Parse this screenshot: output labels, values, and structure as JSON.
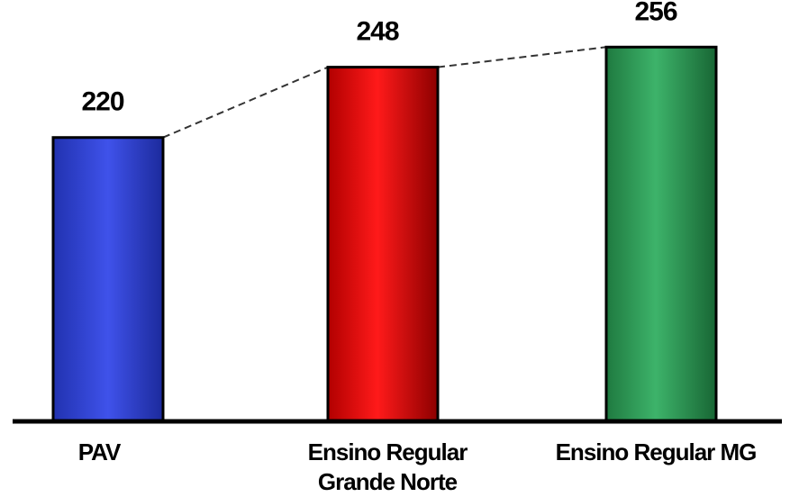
{
  "chart_data": {
    "type": "bar",
    "categories": [
      [
        "PAV"
      ],
      [
        "Ensino Regular",
        "Grande Norte"
      ],
      [
        "Ensino Regular MG"
      ]
    ],
    "values": [
      220,
      248,
      256
    ],
    "data_labels": [
      "220",
      "248",
      "256"
    ],
    "colors": [
      "#2b3fd6",
      "#e60d0d",
      "#2e9a55"
    ],
    "connector_line": "dashed",
    "ylim": [
      0,
      260
    ],
    "title": "",
    "xlabel": "",
    "ylabel": "",
    "grid": false,
    "legend": "none"
  }
}
